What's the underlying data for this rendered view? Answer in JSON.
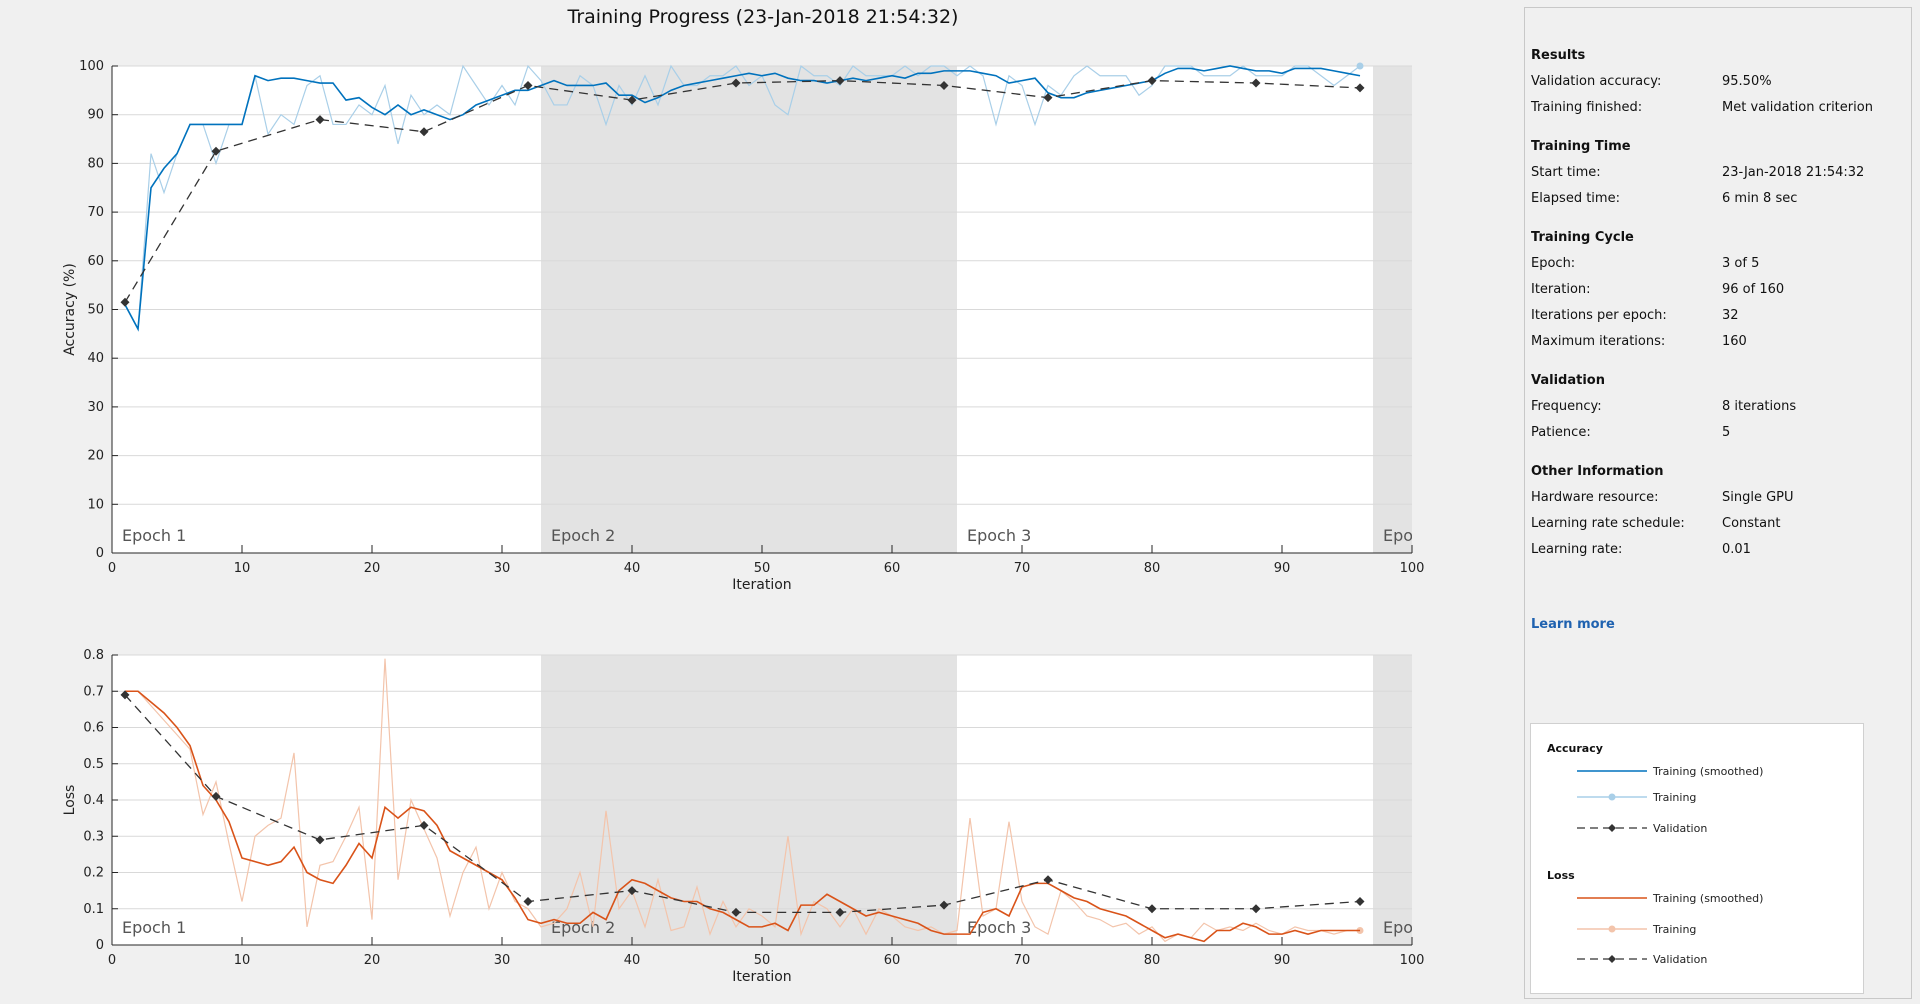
{
  "title": "Training Progress (23-Jan-2018 21:54:32)",
  "info": {
    "sections": [
      {
        "title": "Results",
        "rows": [
          {
            "label": "Validation accuracy:",
            "value": "95.50%"
          },
          {
            "label": "Training finished:",
            "value": "Met validation criterion"
          }
        ]
      },
      {
        "title": "Training Time",
        "rows": [
          {
            "label": "Start time:",
            "value": "23-Jan-2018 21:54:32"
          },
          {
            "label": "Elapsed time:",
            "value": "6 min 8 sec"
          }
        ]
      },
      {
        "title": "Training Cycle",
        "rows": [
          {
            "label": "Epoch:",
            "value": "3 of 5"
          },
          {
            "label": "Iteration:",
            "value": "96 of 160"
          },
          {
            "label": "Iterations per epoch:",
            "value": "32"
          },
          {
            "label": "Maximum iterations:",
            "value": "160"
          }
        ]
      },
      {
        "title": "Validation",
        "rows": [
          {
            "label": "Frequency:",
            "value": "8 iterations"
          },
          {
            "label": "Patience:",
            "value": "5"
          }
        ]
      },
      {
        "title": "Other Information",
        "rows": [
          {
            "label": "Hardware resource:",
            "value": "Single GPU"
          },
          {
            "label": "Learning rate schedule:",
            "value": "Constant"
          },
          {
            "label": "Learning rate:",
            "value": "0.01"
          }
        ]
      }
    ],
    "learn_more": "Learn more"
  },
  "legend": {
    "accuracy_title": "Accuracy",
    "loss_title": "Loss",
    "entries": {
      "acc_smoothed": "Training (smoothed)",
      "acc_training": "Training",
      "acc_validation": "Validation",
      "loss_smoothed": "Training (smoothed)",
      "loss_training": "Training",
      "loss_validation": "Validation"
    }
  },
  "colors": {
    "acc_smoothed": "#0072bd",
    "acc_raw": "#a9cfe8",
    "loss_smoothed": "#d95319",
    "loss_raw": "#f3c4ab",
    "validation": "#333333",
    "epoch_shade": "#e3e3e3",
    "learn_more": "#1f62b0"
  },
  "chart_data": [
    {
      "type": "line",
      "ylabel": "Accuracy (%)",
      "xlabel": "Iteration",
      "xlim": [
        0,
        100
      ],
      "ylim": [
        0,
        100
      ],
      "xticks": [
        0,
        10,
        20,
        30,
        40,
        50,
        60,
        70,
        80,
        90,
        100
      ],
      "yticks": [
        0,
        10,
        20,
        30,
        40,
        50,
        60,
        70,
        80,
        90,
        100
      ],
      "grid": true,
      "epochs": [
        {
          "label": "Epoch 1",
          "start": 0,
          "end": 33
        },
        {
          "label": "Epoch 2",
          "start": 33,
          "end": 65
        },
        {
          "label": "Epoch 3",
          "start": 65,
          "end": 97
        },
        {
          "label": "Epo",
          "start": 97,
          "end": 100
        }
      ],
      "series": [
        {
          "name": "Training (smoothed)",
          "key": "smoothed",
          "x": [
            1,
            2,
            3,
            4,
            5,
            6,
            7,
            8,
            9,
            10,
            11,
            12,
            13,
            14,
            15,
            16,
            17,
            18,
            19,
            20,
            21,
            22,
            23,
            24,
            25,
            26,
            27,
            28,
            29,
            30,
            31,
            32,
            33,
            34,
            35,
            36,
            37,
            38,
            39,
            40,
            41,
            42,
            43,
            44,
            45,
            46,
            47,
            48,
            49,
            50,
            51,
            52,
            53,
            54,
            55,
            56,
            57,
            58,
            59,
            60,
            61,
            62,
            63,
            64,
            65,
            66,
            67,
            68,
            69,
            70,
            71,
            72,
            73,
            74,
            75,
            76,
            77,
            78,
            79,
            80,
            81,
            82,
            83,
            84,
            85,
            86,
            87,
            88,
            89,
            90,
            91,
            92,
            93,
            94,
            95,
            96
          ],
          "y": [
            51,
            46,
            75,
            79,
            82,
            88,
            88,
            88,
            88,
            88,
            98,
            97,
            97.5,
            97.5,
            97,
            96.5,
            96.5,
            93,
            93.5,
            91.5,
            90,
            92,
            90,
            91,
            90,
            89,
            90,
            92,
            93,
            94,
            95,
            95,
            96,
            97,
            96,
            96,
            96,
            96.5,
            94,
            94,
            92.5,
            93.5,
            95,
            96,
            96.5,
            97,
            97.5,
            98,
            98.5,
            98,
            98.5,
            97.5,
            97,
            97,
            96.5,
            97,
            97.5,
            97,
            97.5,
            98,
            97.5,
            98.5,
            98.5,
            99,
            99,
            99,
            98.5,
            98,
            96.5,
            97,
            97.5,
            94.5,
            93.5,
            93.5,
            94.5,
            95,
            95.5,
            96,
            96.5,
            97,
            98.5,
            99.5,
            99.5,
            99,
            99.5,
            100,
            99.5,
            99,
            99,
            98.5,
            99.5,
            99.5,
            99.5,
            99,
            98.5,
            98
          ]
        },
        {
          "name": "Training",
          "key": "raw",
          "x": [
            1,
            2,
            3,
            4,
            5,
            6,
            7,
            8,
            9,
            10,
            11,
            12,
            13,
            14,
            15,
            16,
            17,
            18,
            19,
            20,
            21,
            22,
            23,
            24,
            25,
            26,
            27,
            28,
            29,
            30,
            31,
            32,
            33,
            34,
            35,
            36,
            37,
            38,
            39,
            40,
            41,
            42,
            43,
            44,
            45,
            46,
            47,
            48,
            49,
            50,
            51,
            52,
            53,
            54,
            55,
            56,
            57,
            58,
            59,
            60,
            61,
            62,
            63,
            64,
            65,
            66,
            67,
            68,
            69,
            70,
            71,
            72,
            73,
            74,
            75,
            76,
            77,
            78,
            79,
            80,
            81,
            82,
            83,
            84,
            85,
            86,
            87,
            88,
            89,
            90,
            91,
            92,
            93,
            94,
            95,
            96
          ],
          "y": [
            51,
            46,
            82,
            74,
            82,
            88,
            88,
            80,
            88,
            88,
            98,
            86,
            90,
            88,
            96,
            98,
            88,
            88,
            92,
            90,
            96,
            84,
            94,
            90,
            92,
            90,
            100,
            96,
            92,
            96,
            92,
            100,
            97,
            92,
            92,
            98,
            96,
            88,
            96,
            92,
            98,
            92,
            100,
            96,
            96,
            98,
            98,
            100,
            96,
            98,
            92,
            90,
            100,
            98,
            98,
            96,
            100,
            98,
            98,
            98,
            100,
            98,
            100,
            100,
            98,
            100,
            98,
            88,
            98,
            96,
            88,
            96,
            94,
            98,
            100,
            98,
            98,
            98,
            94,
            96,
            100,
            100,
            100,
            98,
            98,
            98,
            100,
            98,
            98,
            98,
            100,
            100,
            98,
            96,
            98,
            100
          ]
        },
        {
          "name": "Validation",
          "key": "validation",
          "x": [
            1,
            8,
            16,
            24,
            32,
            40,
            48,
            56,
            64,
            72,
            80,
            88,
            96
          ],
          "y": [
            51.5,
            82.5,
            89,
            86.5,
            96,
            93,
            96.5,
            97,
            96,
            93.5,
            97,
            96.5,
            95.5
          ]
        }
      ]
    },
    {
      "type": "line",
      "ylabel": "Loss",
      "xlabel": "Iteration",
      "xlim": [
        0,
        100
      ],
      "ylim": [
        0,
        0.8
      ],
      "xticks": [
        0,
        10,
        20,
        30,
        40,
        50,
        60,
        70,
        80,
        90,
        100
      ],
      "yticks": [
        0,
        0.1,
        0.2,
        0.3,
        0.4,
        0.5,
        0.6,
        0.7,
        0.8
      ],
      "grid": true,
      "epochs": [
        {
          "label": "Epoch 1",
          "start": 0,
          "end": 33
        },
        {
          "label": "Epoch 2",
          "start": 33,
          "end": 65
        },
        {
          "label": "Epoch 3",
          "start": 65,
          "end": 97
        },
        {
          "label": "Epo",
          "start": 97,
          "end": 100
        }
      ],
      "series": [
        {
          "name": "Training (smoothed)",
          "key": "smoothed",
          "x": [
            1,
            2,
            3,
            4,
            5,
            6,
            7,
            8,
            9,
            10,
            11,
            12,
            13,
            14,
            15,
            16,
            17,
            18,
            19,
            20,
            21,
            22,
            23,
            24,
            25,
            26,
            27,
            28,
            29,
            30,
            31,
            32,
            33,
            34,
            35,
            36,
            37,
            38,
            39,
            40,
            41,
            42,
            43,
            44,
            45,
            46,
            47,
            48,
            49,
            50,
            51,
            52,
            53,
            54,
            55,
            56,
            57,
            58,
            59,
            60,
            61,
            62,
            63,
            64,
            65,
            66,
            67,
            68,
            69,
            70,
            71,
            72,
            73,
            74,
            75,
            76,
            77,
            78,
            79,
            80,
            81,
            82,
            83,
            84,
            85,
            86,
            87,
            88,
            89,
            90,
            91,
            92,
            93,
            94,
            95,
            96
          ],
          "y": [
            0.7,
            0.7,
            0.67,
            0.64,
            0.6,
            0.55,
            0.44,
            0.4,
            0.34,
            0.24,
            0.23,
            0.22,
            0.23,
            0.27,
            0.2,
            0.18,
            0.17,
            0.22,
            0.28,
            0.24,
            0.38,
            0.35,
            0.38,
            0.37,
            0.33,
            0.26,
            0.24,
            0.22,
            0.2,
            0.18,
            0.13,
            0.07,
            0.06,
            0.07,
            0.06,
            0.06,
            0.09,
            0.07,
            0.15,
            0.18,
            0.17,
            0.15,
            0.13,
            0.12,
            0.12,
            0.1,
            0.09,
            0.07,
            0.05,
            0.05,
            0.06,
            0.04,
            0.11,
            0.11,
            0.14,
            0.12,
            0.1,
            0.08,
            0.09,
            0.08,
            0.07,
            0.06,
            0.04,
            0.03,
            0.03,
            0.03,
            0.09,
            0.1,
            0.08,
            0.16,
            0.17,
            0.17,
            0.15,
            0.13,
            0.12,
            0.1,
            0.09,
            0.08,
            0.06,
            0.04,
            0.02,
            0.03,
            0.02,
            0.01,
            0.04,
            0.04,
            0.06,
            0.05,
            0.03,
            0.03,
            0.04,
            0.03,
            0.04,
            0.04,
            0.04,
            0.04
          ]
        },
        {
          "name": "Training",
          "key": "raw",
          "x": [
            1,
            2,
            3,
            4,
            5,
            6,
            7,
            8,
            9,
            10,
            11,
            12,
            13,
            14,
            15,
            16,
            17,
            18,
            19,
            20,
            21,
            22,
            23,
            24,
            25,
            26,
            27,
            28,
            29,
            30,
            31,
            32,
            33,
            34,
            35,
            36,
            37,
            38,
            39,
            40,
            41,
            42,
            43,
            44,
            45,
            46,
            47,
            48,
            49,
            50,
            51,
            52,
            53,
            54,
            55,
            56,
            57,
            58,
            59,
            60,
            61,
            62,
            63,
            64,
            65,
            66,
            67,
            68,
            69,
            70,
            71,
            72,
            73,
            74,
            75,
            76,
            77,
            78,
            79,
            80,
            81,
            82,
            83,
            84,
            85,
            86,
            87,
            88,
            89,
            90,
            91,
            92,
            93,
            94,
            95,
            96
          ],
          "y": [
            0.7,
            0.7,
            0.66,
            0.62,
            0.58,
            0.54,
            0.36,
            0.45,
            0.28,
            0.12,
            0.3,
            0.33,
            0.35,
            0.53,
            0.05,
            0.22,
            0.23,
            0.3,
            0.38,
            0.07,
            0.79,
            0.18,
            0.4,
            0.32,
            0.24,
            0.08,
            0.2,
            0.27,
            0.1,
            0.2,
            0.12,
            0.1,
            0.05,
            0.06,
            0.1,
            0.2,
            0.05,
            0.37,
            0.1,
            0.15,
            0.05,
            0.18,
            0.04,
            0.05,
            0.16,
            0.03,
            0.12,
            0.05,
            0.1,
            0.08,
            0.05,
            0.3,
            0.03,
            0.12,
            0.1,
            0.05,
            0.1,
            0.03,
            0.1,
            0.08,
            0.05,
            0.04,
            0.05,
            0.03,
            0.04,
            0.35,
            0.08,
            0.1,
            0.34,
            0.12,
            0.05,
            0.03,
            0.15,
            0.12,
            0.08,
            0.07,
            0.05,
            0.06,
            0.03,
            0.05,
            0.01,
            0.03,
            0.02,
            0.06,
            0.04,
            0.05,
            0.04,
            0.06,
            0.04,
            0.03,
            0.05,
            0.04,
            0.04,
            0.03,
            0.04,
            0.04
          ]
        },
        {
          "name": "Validation",
          "key": "validation",
          "x": [
            1,
            8,
            16,
            24,
            32,
            40,
            48,
            56,
            64,
            72,
            80,
            88,
            96
          ],
          "y": [
            0.69,
            0.41,
            0.29,
            0.33,
            0.12,
            0.15,
            0.09,
            0.09,
            0.11,
            0.18,
            0.1,
            0.1,
            0.12
          ]
        }
      ]
    }
  ]
}
